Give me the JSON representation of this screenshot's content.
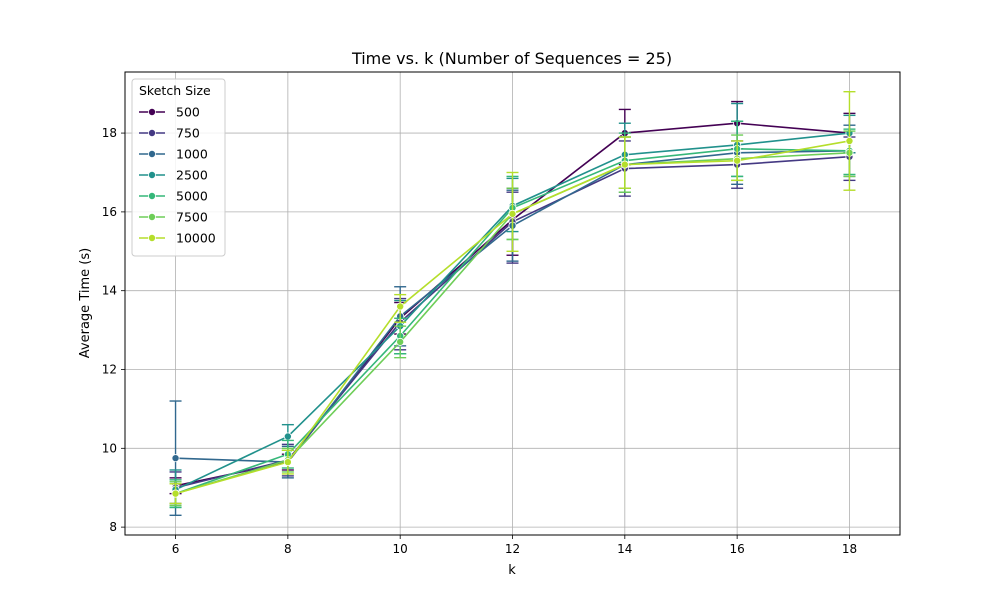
{
  "chart_data": {
    "type": "line",
    "title": "Time vs. k (Number of Sequences = 25)",
    "xlabel": "k",
    "ylabel": "Average Time (s)",
    "x": [
      6,
      8,
      10,
      12,
      14,
      16,
      18
    ],
    "xticks": [
      "6",
      "8",
      "10",
      "12",
      "14",
      "16",
      "18"
    ],
    "yticks": [
      "8",
      "10",
      "12",
      "14",
      "16",
      "18"
    ],
    "xlim": [
      5.1,
      18.9
    ],
    "ylim": [
      7.8,
      19.55
    ],
    "grid": true,
    "error_bars": true,
    "legend": {
      "title": "Sketch Size",
      "placement": "top-left"
    },
    "series": [
      {
        "name": "500",
        "color": "#440154",
        "values": [
          9.05,
          9.65,
          13.3,
          15.8,
          18.0,
          18.25,
          18.0
        ],
        "err_low": [
          8.85,
          9.45,
          12.9,
          14.9,
          17.2,
          17.6,
          17.5
        ],
        "err_high": [
          9.25,
          9.85,
          13.7,
          16.6,
          18.6,
          18.8,
          18.5
        ]
      },
      {
        "name": "750",
        "color": "#443983",
        "values": [
          9.0,
          9.7,
          13.2,
          15.75,
          17.1,
          17.2,
          17.4
        ],
        "err_low": [
          8.6,
          9.3,
          12.5,
          14.7,
          16.4,
          16.6,
          16.8
        ],
        "err_high": [
          9.4,
          10.1,
          13.8,
          16.5,
          17.8,
          17.8,
          17.9
        ]
      },
      {
        "name": "1000",
        "color": "#31688e",
        "values": [
          9.75,
          9.65,
          13.35,
          15.65,
          17.2,
          17.5,
          17.55
        ],
        "err_low": [
          8.3,
          9.25,
          12.6,
          14.75,
          16.5,
          16.7,
          16.9
        ],
        "err_high": [
          11.2,
          10.05,
          14.1,
          16.55,
          17.9,
          18.3,
          18.2
        ]
      },
      {
        "name": "2500",
        "color": "#21918c",
        "values": [
          8.95,
          10.3,
          13.1,
          16.15,
          17.45,
          17.7,
          18.0
        ],
        "err_low": [
          8.5,
          9.95,
          12.4,
          15.5,
          16.6,
          16.9,
          17.5
        ],
        "err_high": [
          9.45,
          10.6,
          13.75,
          16.85,
          18.25,
          18.75,
          18.45
        ]
      },
      {
        "name": "5000",
        "color": "#35b779",
        "values": [
          8.85,
          9.85,
          12.85,
          16.1,
          17.3,
          17.6,
          17.55
        ],
        "err_low": [
          8.5,
          9.5,
          12.4,
          15.3,
          16.6,
          16.9,
          16.95
        ],
        "err_high": [
          9.2,
          10.2,
          13.3,
          16.9,
          18.0,
          18.3,
          18.1
        ]
      },
      {
        "name": "7500",
        "color": "#6ece58",
        "values": [
          8.85,
          9.7,
          12.7,
          15.95,
          17.2,
          17.35,
          17.5
        ],
        "err_low": [
          8.55,
          9.4,
          12.3,
          15.3,
          16.5,
          16.8,
          16.9
        ],
        "err_high": [
          9.15,
          10.0,
          13.1,
          16.6,
          17.9,
          17.95,
          18.05
        ]
      },
      {
        "name": "10000",
        "color": "#b5de2b",
        "values": [
          8.85,
          9.65,
          13.6,
          15.95,
          17.2,
          17.3,
          17.8
        ],
        "err_low": [
          8.6,
          9.35,
          13.2,
          15.0,
          16.6,
          16.8,
          16.55
        ],
        "err_high": [
          9.1,
          9.95,
          13.9,
          17.0,
          17.9,
          17.8,
          19.05
        ]
      }
    ]
  }
}
